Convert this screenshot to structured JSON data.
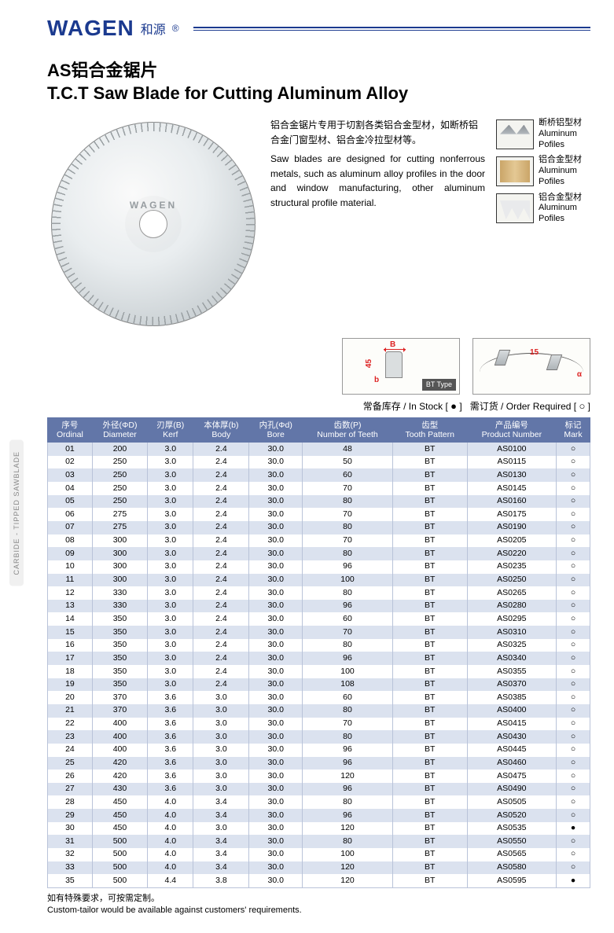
{
  "brand": {
    "en": "WAGEN",
    "cn": "和源",
    "reg": "®"
  },
  "title_cn": "AS铝合金锯片",
  "title_en": "T.C.T Saw Blade for Cutting Aluminum Alloy",
  "blade_label": "WAGEN",
  "desc_cn": "铝合金锯片专用于切割各类铝合金型材，如断桥铝合金门窗型材、铝合金冷拉型材等。",
  "desc_en": "Saw blades are designed for cutting nonferrous metals, such as aluminum alloy profiles in the door and window manufacturing, other aluminum structural profile material.",
  "thumbs": [
    {
      "cn": "断桥铝型材",
      "en": "Aluminum Pofiles"
    },
    {
      "cn": "铝合金型材",
      "en": "Aluminum Pofiles"
    },
    {
      "cn": "铝合金型材",
      "en": "Aluminum Pofiles"
    }
  ],
  "diagram1": {
    "B": "B",
    "angle": "45",
    "sb": "b",
    "bt": "BT\nType"
  },
  "diagram2": {
    "n": "15",
    "alpha": "α"
  },
  "legend": {
    "stock_cn": "常备库存",
    "stock_en": "In Stock",
    "order_cn": "需订货",
    "order_en": "Order Required",
    "solid": "●",
    "open": "○"
  },
  "side_tab": "CARBIDE - TIPPED SAWBLADE",
  "table": {
    "headers": [
      {
        "cn": "序号",
        "en": "Ordinal"
      },
      {
        "cn": "外径(ΦD)",
        "en": "Diameter"
      },
      {
        "cn": "刃厚(B)",
        "en": "Kerf"
      },
      {
        "cn": "本体厚(b)",
        "en": "Body"
      },
      {
        "cn": "内孔(Φd)",
        "en": "Bore"
      },
      {
        "cn": "齿数(P)",
        "en": "Number of Teeth"
      },
      {
        "cn": "齿型",
        "en": "Tooth Pattern"
      },
      {
        "cn": "产品编号",
        "en": "Product Number"
      },
      {
        "cn": "标记",
        "en": "Mark"
      }
    ],
    "rows": [
      [
        "01",
        "200",
        "3.0",
        "2.4",
        "30.0",
        "48",
        "BT",
        "AS0100",
        "○"
      ],
      [
        "02",
        "250",
        "3.0",
        "2.4",
        "30.0",
        "50",
        "BT",
        "AS0115",
        "○"
      ],
      [
        "03",
        "250",
        "3.0",
        "2.4",
        "30.0",
        "60",
        "BT",
        "AS0130",
        "○"
      ],
      [
        "04",
        "250",
        "3.0",
        "2.4",
        "30.0",
        "70",
        "BT",
        "AS0145",
        "○"
      ],
      [
        "05",
        "250",
        "3.0",
        "2.4",
        "30.0",
        "80",
        "BT",
        "AS0160",
        "○"
      ],
      [
        "06",
        "275",
        "3.0",
        "2.4",
        "30.0",
        "70",
        "BT",
        "AS0175",
        "○"
      ],
      [
        "07",
        "275",
        "3.0",
        "2.4",
        "30.0",
        "80",
        "BT",
        "AS0190",
        "○"
      ],
      [
        "08",
        "300",
        "3.0",
        "2.4",
        "30.0",
        "70",
        "BT",
        "AS0205",
        "○"
      ],
      [
        "09",
        "300",
        "3.0",
        "2.4",
        "30.0",
        "80",
        "BT",
        "AS0220",
        "○"
      ],
      [
        "10",
        "300",
        "3.0",
        "2.4",
        "30.0",
        "96",
        "BT",
        "AS0235",
        "○"
      ],
      [
        "11",
        "300",
        "3.0",
        "2.4",
        "30.0",
        "100",
        "BT",
        "AS0250",
        "○"
      ],
      [
        "12",
        "330",
        "3.0",
        "2.4",
        "30.0",
        "80",
        "BT",
        "AS0265",
        "○"
      ],
      [
        "13",
        "330",
        "3.0",
        "2.4",
        "30.0",
        "96",
        "BT",
        "AS0280",
        "○"
      ],
      [
        "14",
        "350",
        "3.0",
        "2.4",
        "30.0",
        "60",
        "BT",
        "AS0295",
        "○"
      ],
      [
        "15",
        "350",
        "3.0",
        "2.4",
        "30.0",
        "70",
        "BT",
        "AS0310",
        "○"
      ],
      [
        "16",
        "350",
        "3.0",
        "2.4",
        "30.0",
        "80",
        "BT",
        "AS0325",
        "○"
      ],
      [
        "17",
        "350",
        "3.0",
        "2.4",
        "30.0",
        "96",
        "BT",
        "AS0340",
        "○"
      ],
      [
        "18",
        "350",
        "3.0",
        "2.4",
        "30.0",
        "100",
        "BT",
        "AS0355",
        "○"
      ],
      [
        "19",
        "350",
        "3.0",
        "2.4",
        "30.0",
        "108",
        "BT",
        "AS0370",
        "○"
      ],
      [
        "20",
        "370",
        "3.6",
        "3.0",
        "30.0",
        "60",
        "BT",
        "AS0385",
        "○"
      ],
      [
        "21",
        "370",
        "3.6",
        "3.0",
        "30.0",
        "80",
        "BT",
        "AS0400",
        "○"
      ],
      [
        "22",
        "400",
        "3.6",
        "3.0",
        "30.0",
        "70",
        "BT",
        "AS0415",
        "○"
      ],
      [
        "23",
        "400",
        "3.6",
        "3.0",
        "30.0",
        "80",
        "BT",
        "AS0430",
        "○"
      ],
      [
        "24",
        "400",
        "3.6",
        "3.0",
        "30.0",
        "96",
        "BT",
        "AS0445",
        "○"
      ],
      [
        "25",
        "420",
        "3.6",
        "3.0",
        "30.0",
        "96",
        "BT",
        "AS0460",
        "○"
      ],
      [
        "26",
        "420",
        "3.6",
        "3.0",
        "30.0",
        "120",
        "BT",
        "AS0475",
        "○"
      ],
      [
        "27",
        "430",
        "3.6",
        "3.0",
        "30.0",
        "96",
        "BT",
        "AS0490",
        "○"
      ],
      [
        "28",
        "450",
        "4.0",
        "3.4",
        "30.0",
        "80",
        "BT",
        "AS0505",
        "○"
      ],
      [
        "29",
        "450",
        "4.0",
        "3.4",
        "30.0",
        "96",
        "BT",
        "AS0520",
        "○"
      ],
      [
        "30",
        "450",
        "4.0",
        "3.0",
        "30.0",
        "120",
        "BT",
        "AS0535",
        "●"
      ],
      [
        "31",
        "500",
        "4.0",
        "3.4",
        "30.0",
        "80",
        "BT",
        "AS0550",
        "○"
      ],
      [
        "32",
        "500",
        "4.0",
        "3.4",
        "30.0",
        "100",
        "BT",
        "AS0565",
        "○"
      ],
      [
        "33",
        "500",
        "4.0",
        "3.4",
        "30.0",
        "120",
        "BT",
        "AS0580",
        "○"
      ],
      [
        "35",
        "500",
        "4.4",
        "3.8",
        "30.0",
        "120",
        "BT",
        "AS0595",
        "●"
      ]
    ]
  },
  "footnote_cn": "如有特殊要求，可按需定制。",
  "footnote_en": "Custom-tailor would be available against customers' requirements."
}
